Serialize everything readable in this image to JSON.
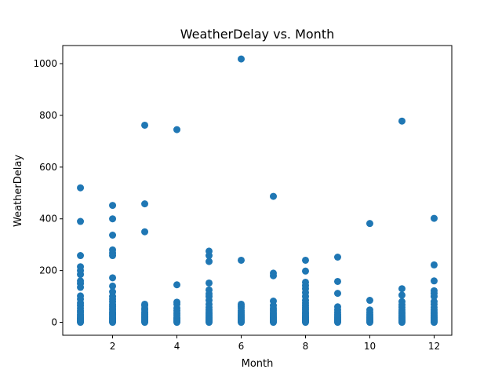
{
  "chart_data": {
    "type": "scatter",
    "title": "WeatherDelay vs. Month",
    "xlabel": "Month",
    "ylabel": "WeatherDelay",
    "xlim": [
      0.45,
      12.55
    ],
    "ylim": [
      -50,
      1070
    ],
    "xticks": [
      2,
      4,
      6,
      8,
      10,
      12
    ],
    "yticks": [
      0,
      200,
      400,
      600,
      800,
      1000
    ],
    "grid": false,
    "marker_color": "#1f77b4",
    "points": [
      [
        1,
        0
      ],
      [
        1,
        2
      ],
      [
        1,
        5
      ],
      [
        1,
        8
      ],
      [
        1,
        12
      ],
      [
        1,
        15
      ],
      [
        1,
        20
      ],
      [
        1,
        25
      ],
      [
        1,
        30
      ],
      [
        1,
        38
      ],
      [
        1,
        45
      ],
      [
        1,
        55
      ],
      [
        1,
        65
      ],
      [
        1,
        75
      ],
      [
        1,
        90
      ],
      [
        1,
        102
      ],
      [
        1,
        135
      ],
      [
        1,
        150
      ],
      [
        1,
        160
      ],
      [
        1,
        185
      ],
      [
        1,
        200
      ],
      [
        1,
        215
      ],
      [
        1,
        258
      ],
      [
        1,
        390
      ],
      [
        1,
        520
      ],
      [
        2,
        0
      ],
      [
        2,
        2
      ],
      [
        2,
        5
      ],
      [
        2,
        8
      ],
      [
        2,
        12
      ],
      [
        2,
        16
      ],
      [
        2,
        20
      ],
      [
        2,
        25
      ],
      [
        2,
        30
      ],
      [
        2,
        35
      ],
      [
        2,
        40
      ],
      [
        2,
        48
      ],
      [
        2,
        55
      ],
      [
        2,
        62
      ],
      [
        2,
        70
      ],
      [
        2,
        80
      ],
      [
        2,
        90
      ],
      [
        2,
        100
      ],
      [
        2,
        118
      ],
      [
        2,
        140
      ],
      [
        2,
        172
      ],
      [
        2,
        258
      ],
      [
        2,
        268
      ],
      [
        2,
        280
      ],
      [
        2,
        337
      ],
      [
        2,
        400
      ],
      [
        2,
        452
      ],
      [
        3,
        0
      ],
      [
        3,
        3
      ],
      [
        3,
        6
      ],
      [
        3,
        10
      ],
      [
        3,
        14
      ],
      [
        3,
        18
      ],
      [
        3,
        22
      ],
      [
        3,
        26
      ],
      [
        3,
        30
      ],
      [
        3,
        35
      ],
      [
        3,
        40
      ],
      [
        3,
        48
      ],
      [
        3,
        55
      ],
      [
        3,
        65
      ],
      [
        3,
        70
      ],
      [
        3,
        350
      ],
      [
        3,
        458
      ],
      [
        3,
        762
      ],
      [
        4,
        0
      ],
      [
        4,
        3
      ],
      [
        4,
        7
      ],
      [
        4,
        11
      ],
      [
        4,
        15
      ],
      [
        4,
        20
      ],
      [
        4,
        28
      ],
      [
        4,
        35
      ],
      [
        4,
        45
      ],
      [
        4,
        55
      ],
      [
        4,
        70
      ],
      [
        4,
        78
      ],
      [
        4,
        145
      ],
      [
        4,
        745
      ],
      [
        5,
        0
      ],
      [
        5,
        3
      ],
      [
        5,
        6
      ],
      [
        5,
        10
      ],
      [
        5,
        14
      ],
      [
        5,
        18
      ],
      [
        5,
        23
      ],
      [
        5,
        28
      ],
      [
        5,
        33
      ],
      [
        5,
        40
      ],
      [
        5,
        48
      ],
      [
        5,
        58
      ],
      [
        5,
        70
      ],
      [
        5,
        85
      ],
      [
        5,
        100
      ],
      [
        5,
        110
      ],
      [
        5,
        125
      ],
      [
        5,
        152
      ],
      [
        5,
        235
      ],
      [
        5,
        258
      ],
      [
        5,
        275
      ],
      [
        6,
        0
      ],
      [
        6,
        3
      ],
      [
        6,
        6
      ],
      [
        6,
        10
      ],
      [
        6,
        14
      ],
      [
        6,
        18
      ],
      [
        6,
        22
      ],
      [
        6,
        27
      ],
      [
        6,
        32
      ],
      [
        6,
        38
      ],
      [
        6,
        45
      ],
      [
        6,
        55
      ],
      [
        6,
        62
      ],
      [
        6,
        70
      ],
      [
        6,
        240
      ],
      [
        6,
        1018
      ],
      [
        7,
        0
      ],
      [
        7,
        3
      ],
      [
        7,
        6
      ],
      [
        7,
        10
      ],
      [
        7,
        14
      ],
      [
        7,
        18
      ],
      [
        7,
        23
      ],
      [
        7,
        28
      ],
      [
        7,
        33
      ],
      [
        7,
        40
      ],
      [
        7,
        47
      ],
      [
        7,
        55
      ],
      [
        7,
        65
      ],
      [
        7,
        82
      ],
      [
        7,
        180
      ],
      [
        7,
        190
      ],
      [
        7,
        487
      ],
      [
        8,
        0
      ],
      [
        8,
        3
      ],
      [
        8,
        6
      ],
      [
        8,
        10
      ],
      [
        8,
        14
      ],
      [
        8,
        18
      ],
      [
        8,
        23
      ],
      [
        8,
        28
      ],
      [
        8,
        34
      ],
      [
        8,
        40
      ],
      [
        8,
        48
      ],
      [
        8,
        56
      ],
      [
        8,
        65
      ],
      [
        8,
        75
      ],
      [
        8,
        85
      ],
      [
        8,
        100
      ],
      [
        8,
        115
      ],
      [
        8,
        130
      ],
      [
        8,
        142
      ],
      [
        8,
        155
      ],
      [
        8,
        198
      ],
      [
        8,
        240
      ],
      [
        9,
        0
      ],
      [
        9,
        3
      ],
      [
        9,
        6
      ],
      [
        9,
        10
      ],
      [
        9,
        14
      ],
      [
        9,
        18
      ],
      [
        9,
        24
      ],
      [
        9,
        30
      ],
      [
        9,
        38
      ],
      [
        9,
        48
      ],
      [
        9,
        60
      ],
      [
        9,
        112
      ],
      [
        9,
        158
      ],
      [
        9,
        252
      ],
      [
        10,
        0
      ],
      [
        10,
        3
      ],
      [
        10,
        6
      ],
      [
        10,
        10
      ],
      [
        10,
        14
      ],
      [
        10,
        18
      ],
      [
        10,
        24
      ],
      [
        10,
        30
      ],
      [
        10,
        38
      ],
      [
        10,
        48
      ],
      [
        10,
        85
      ],
      [
        10,
        382
      ],
      [
        11,
        0
      ],
      [
        11,
        3
      ],
      [
        11,
        6
      ],
      [
        11,
        10
      ],
      [
        11,
        14
      ],
      [
        11,
        18
      ],
      [
        11,
        23
      ],
      [
        11,
        28
      ],
      [
        11,
        34
      ],
      [
        11,
        40
      ],
      [
        11,
        48
      ],
      [
        11,
        58
      ],
      [
        11,
        68
      ],
      [
        11,
        80
      ],
      [
        11,
        105
      ],
      [
        11,
        130
      ],
      [
        11,
        778
      ],
      [
        12,
        0
      ],
      [
        12,
        3
      ],
      [
        12,
        6
      ],
      [
        12,
        10
      ],
      [
        12,
        14
      ],
      [
        12,
        18
      ],
      [
        12,
        23
      ],
      [
        12,
        28
      ],
      [
        12,
        34
      ],
      [
        12,
        40
      ],
      [
        12,
        48
      ],
      [
        12,
        58
      ],
      [
        12,
        70
      ],
      [
        12,
        80
      ],
      [
        12,
        100
      ],
      [
        12,
        112
      ],
      [
        12,
        122
      ],
      [
        12,
        160
      ],
      [
        12,
        222
      ],
      [
        12,
        402
      ]
    ]
  }
}
